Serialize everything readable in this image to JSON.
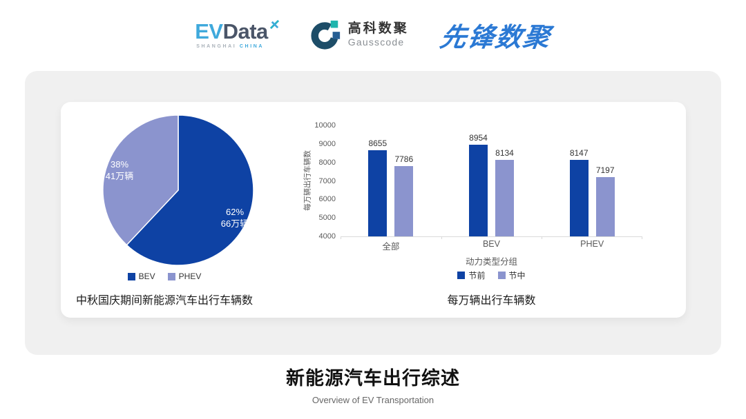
{
  "header": {
    "evdata": {
      "ev": "EV",
      "data": "Data",
      "sub_shanghai": "SHANGHAI",
      "sub_china": "CHINA"
    },
    "gausscode": {
      "cn": "高科数聚",
      "en": "Gausscode"
    },
    "pioneer": {
      "text": "先锋数聚"
    }
  },
  "colors": {
    "primary": "#0E42A4",
    "secondary": "#8B94CE",
    "axis_text": "#595959",
    "label_text": "#333333",
    "baseline": "#D9D9D9"
  },
  "chart_data": [
    {
      "type": "pie",
      "title": "中秋国庆期间新能源汽车出行车辆数",
      "slices": [
        {
          "label": "BEV",
          "percent": 62,
          "percent_label": "62%",
          "count_label": "66万辆",
          "color_key": "primary"
        },
        {
          "label": "PHEV",
          "percent": 38,
          "percent_label": "38%",
          "count_label": "41万辆",
          "color_key": "secondary"
        }
      ],
      "start_angle_deg": 0,
      "legend_position": "bottom"
    },
    {
      "type": "bar",
      "title": "每万辆出行车辆数",
      "categories": [
        "全部",
        "BEV",
        "PHEV"
      ],
      "series": [
        {
          "name": "节前",
          "values": [
            8655,
            8954,
            8147
          ],
          "color_key": "primary"
        },
        {
          "name": "节中",
          "values": [
            7786,
            8134,
            7197
          ],
          "color_key": "secondary"
        }
      ],
      "xlabel": "动力类型分组",
      "ylabel": "每万辆出行车辆数",
      "ylim": [
        4000,
        10000
      ],
      "ytick_step": 1000,
      "grid": false,
      "legend_position": "bottom"
    }
  ],
  "footer": {
    "title": "新能源汽车出行综述",
    "subtitle": "Overview of EV Transportation"
  }
}
